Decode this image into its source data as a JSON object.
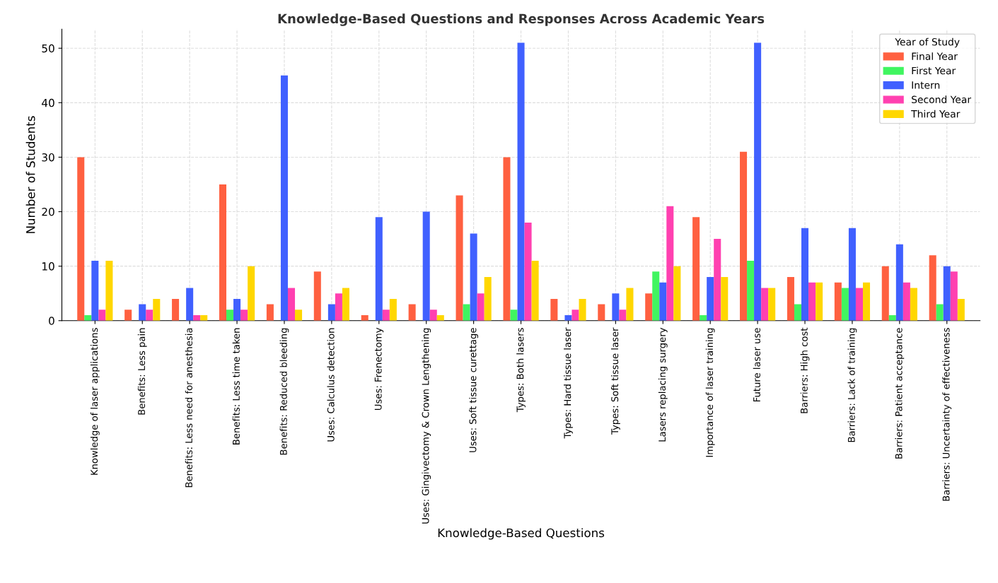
{
  "chart_data": {
    "type": "bar",
    "title": "Knowledge-Based Questions and Responses Across Academic Years",
    "xlabel": "Knowledge-Based Questions",
    "ylabel": "Number of Students",
    "legend_title": "Year of Study",
    "legend": "top right",
    "grid": true,
    "categories": [
      "Knowledge of laser applications",
      "Benefits: Less pain",
      "Benefits: Less need for anesthesia",
      "Benefits: Less time taken",
      "Benefits: Reduced bleeding",
      "Uses: Calculus detection",
      "Uses: Frenectomy",
      "Uses: Gingivectomy & Crown Lengthening",
      "Uses: Soft tissue curettage",
      "Types: Both lasers",
      "Types: Hard tissue laser",
      "Types: Soft tissue laser",
      "Lasers replacing surgery",
      "Importance of laser training",
      "Future laser use",
      "Barriers: High cost",
      "Barriers: Lack of training",
      "Barriers: Patient acceptance",
      "Barriers: Uncertainty of effectiveness"
    ],
    "ylim": [
      0,
      53.5
    ],
    "yticks": [
      0,
      10,
      20,
      30,
      40,
      50
    ],
    "series": [
      {
        "name": "Final Year",
        "color": "#ff6040",
        "values": [
          30,
          2,
          4,
          25,
          3,
          9,
          1,
          3,
          23,
          30,
          4,
          3,
          5,
          19,
          31,
          8,
          7,
          10,
          12
        ]
      },
      {
        "name": "First Year",
        "color": "#40f560",
        "values": [
          1,
          0,
          0,
          2,
          0,
          0,
          0,
          0,
          3,
          2,
          0,
          0,
          9,
          1,
          11,
          3,
          6,
          1,
          3
        ]
      },
      {
        "name": "Intern",
        "color": "#4060ff",
        "values": [
          11,
          3,
          6,
          4,
          45,
          3,
          19,
          20,
          16,
          51,
          1,
          5,
          7,
          8,
          51,
          17,
          17,
          14,
          10
        ]
      },
      {
        "name": "Second Year",
        "color": "#ff40b0",
        "values": [
          2,
          2,
          1,
          2,
          6,
          5,
          2,
          2,
          5,
          18,
          2,
          2,
          21,
          15,
          6,
          7,
          6,
          7,
          9
        ]
      },
      {
        "name": "Third Year",
        "color": "#ffd700",
        "values": [
          11,
          4,
          1,
          10,
          2,
          6,
          4,
          1,
          8,
          11,
          4,
          6,
          10,
          8,
          6,
          7,
          7,
          6,
          4
        ]
      }
    ]
  }
}
